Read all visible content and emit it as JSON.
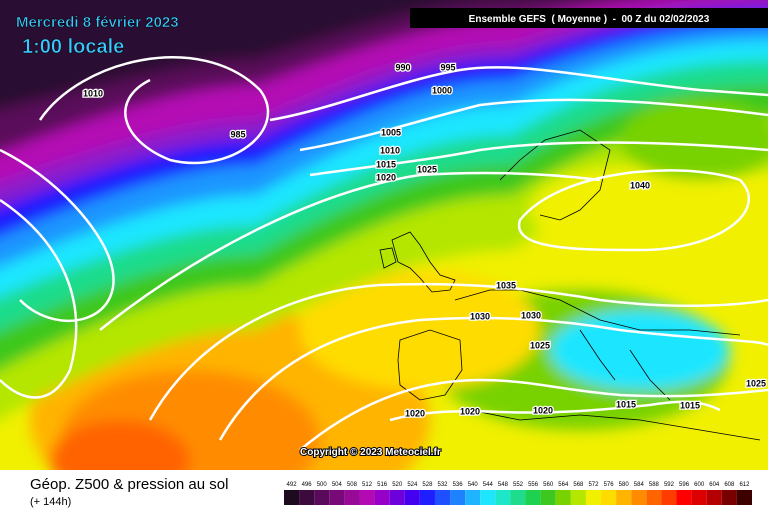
{
  "header": {
    "date": "Mercredi 8 février 2023",
    "time": "1:00 locale",
    "run": "Ensemble GEFS  ( Moyenne )  -  00 Z du 02/02/2023"
  },
  "isobar_labels": [
    "1010",
    "985",
    "990",
    "995",
    "1000",
    "1005",
    "1010",
    "1015",
    "1020",
    "1025",
    "1040",
    "1035",
    "1030",
    "1030",
    "1025",
    "1020",
    "1020",
    "1020",
    "1015",
    "1015",
    "1025"
  ],
  "copyright": "Copyright © 2023 Meteociel.fr",
  "footer": {
    "title": "Géop. Z500 & pression au sol",
    "lead_time": "(+ 144h)"
  },
  "legend": {
    "labels": [
      492,
      496,
      500,
      504,
      508,
      512,
      516,
      520,
      524,
      528,
      532,
      536,
      540,
      544,
      548,
      552,
      556,
      560,
      564,
      568,
      572,
      576,
      580,
      584,
      588,
      592,
      596,
      600,
      604,
      608,
      612
    ],
    "colors": [
      "#1e0a1e",
      "#3c0a3c",
      "#5a0a5a",
      "#780a78",
      "#960a96",
      "#b40ab4",
      "#9600c8",
      "#6e00dc",
      "#4600f0",
      "#1e1eff",
      "#1e50ff",
      "#1e82ff",
      "#1eb4ff",
      "#1ee6ff",
      "#1ee6c8",
      "#1edc8c",
      "#1ed250",
      "#3cc81e",
      "#78d200",
      "#b4e600",
      "#f0f000",
      "#ffdc00",
      "#ffb400",
      "#ff8c00",
      "#ff6400",
      "#ff3c00",
      "#ff0000",
      "#dc0000",
      "#b40000",
      "#780000",
      "#3c0000"
    ]
  }
}
